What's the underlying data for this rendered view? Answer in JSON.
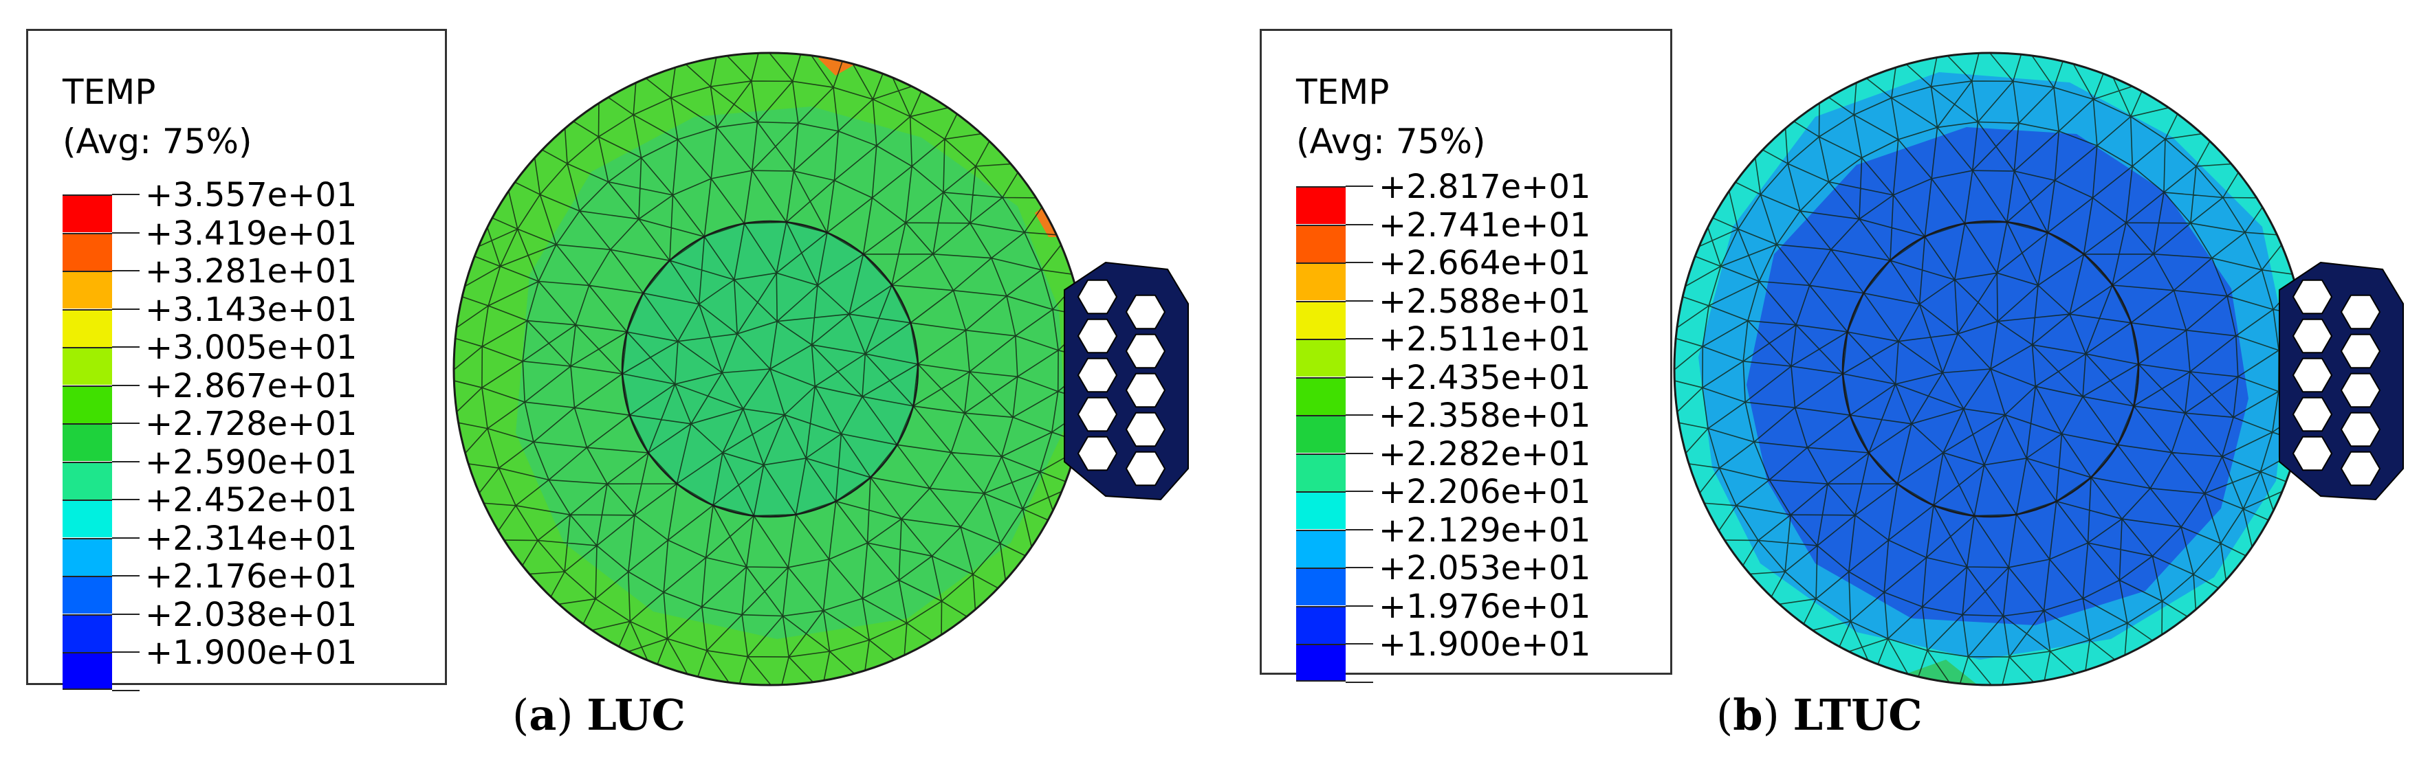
{
  "panels": [
    {
      "id": "a",
      "legend": {
        "title": "TEMP",
        "subtitle": "(Avg: 75%)",
        "values": [
          "+3.557e+01",
          "+3.419e+01",
          "+3.281e+01",
          "+3.143e+01",
          "+3.005e+01",
          "+2.867e+01",
          "+2.728e+01",
          "+2.590e+01",
          "+2.452e+01",
          "+2.314e+01",
          "+2.176e+01",
          "+2.038e+01",
          "+1.900e+01"
        ]
      },
      "caption": {
        "letter": "a",
        "label": "LUC"
      },
      "field": {
        "outer_color": "#4fd436",
        "mid_color": "#3fce5a",
        "core_color": "#31c96f",
        "hot_color": "#f07a1a"
      }
    },
    {
      "id": "b",
      "legend": {
        "title": "TEMP",
        "subtitle": "(Avg: 75%)",
        "values": [
          "+2.817e+01",
          "+2.741e+01",
          "+2.664e+01",
          "+2.588e+01",
          "+2.511e+01",
          "+2.435e+01",
          "+2.358e+01",
          "+2.282e+01",
          "+2.206e+01",
          "+2.129e+01",
          "+2.053e+01",
          "+1.976e+01",
          "+1.900e+01"
        ]
      },
      "caption": {
        "letter": "b",
        "label": "LTUC"
      },
      "field": {
        "outer_color": "#1fe0cf",
        "mid_color": "#1aa8e6",
        "core_color": "#1b62e0",
        "hot_color": "#31c96f"
      }
    }
  ],
  "colormap": [
    "#ff0000",
    "#ff5a00",
    "#ffb400",
    "#f0f000",
    "#a0f000",
    "#40e000",
    "#1ed23c",
    "#1ee68c",
    "#00f0e0",
    "#00b4ff",
    "#0064ff",
    "#0028ff",
    "#0000ff"
  ],
  "heatsink_color": "#0d1a5a"
}
